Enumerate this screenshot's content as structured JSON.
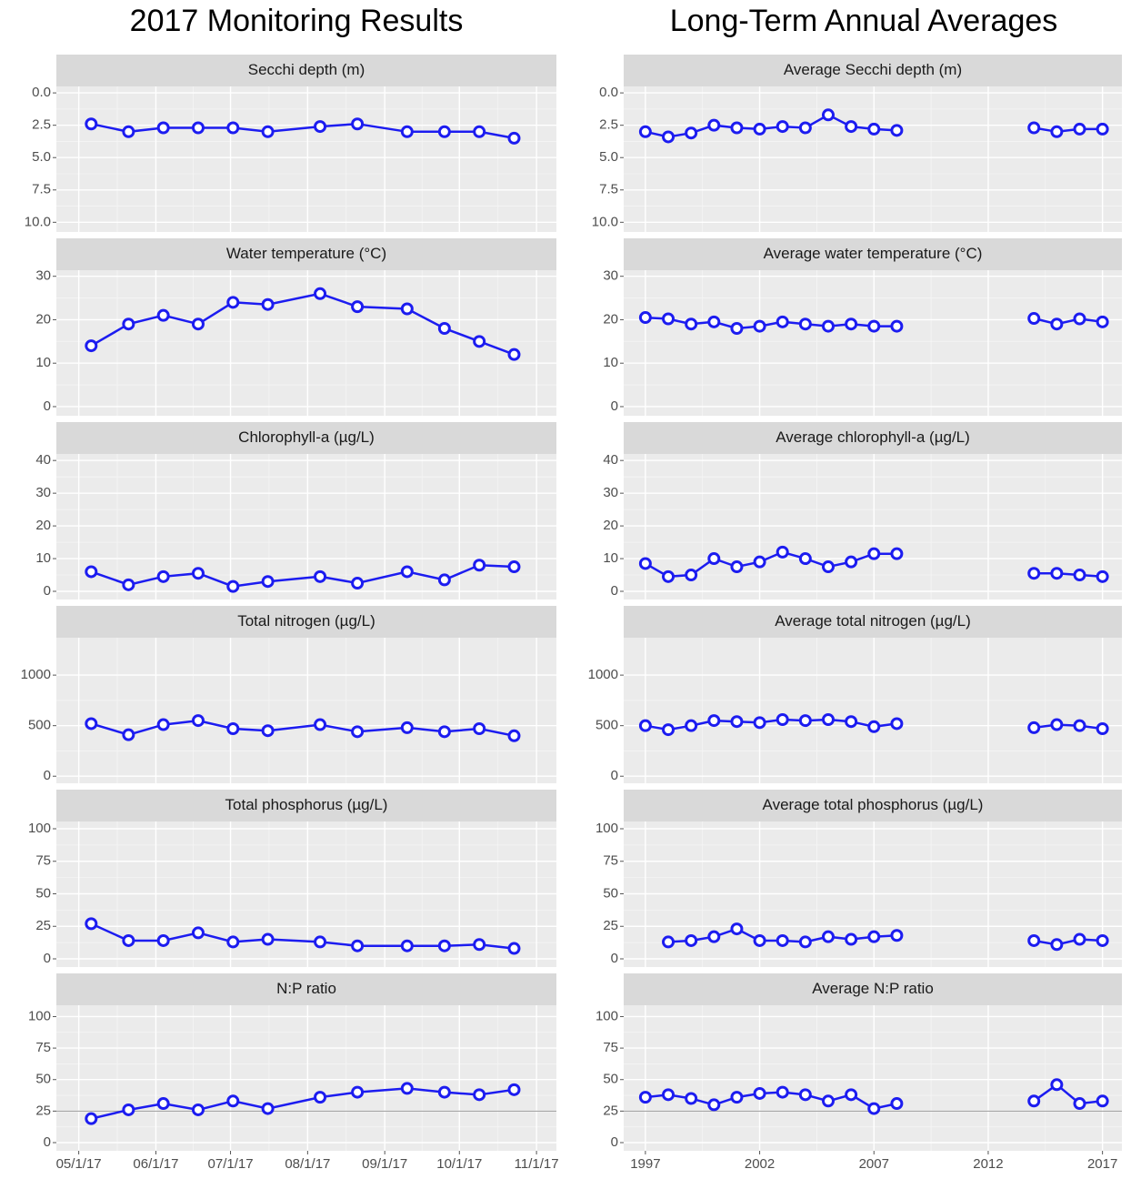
{
  "chart_data": [
    {
      "type": "line",
      "title": "2017 Monitoring Results",
      "color": "#1c1cf0",
      "grid": true,
      "xlim": [
        "2017-04-22",
        "2017-11-09"
      ],
      "xticks": [
        {
          "value": "2017-05-01",
          "label": "05/1/17"
        },
        {
          "value": "2017-06-01",
          "label": "06/1/17"
        },
        {
          "value": "2017-07-01",
          "label": "07/1/17"
        },
        {
          "value": "2017-08-01",
          "label": "08/1/17"
        },
        {
          "value": "2017-09-01",
          "label": "09/1/17"
        },
        {
          "value": "2017-10-01",
          "label": "10/1/17"
        },
        {
          "value": "2017-11-01",
          "label": "11/1/17"
        }
      ],
      "x": [
        "2017-05-06",
        "2017-05-21",
        "2017-06-04",
        "2017-06-18",
        "2017-07-02",
        "2017-07-16",
        "2017-08-06",
        "2017-08-21",
        "2017-09-10",
        "2017-09-25",
        "2017-10-09",
        "2017-10-23"
      ],
      "facets": [
        {
          "title": "Secchi depth (m)",
          "ylim": [
            10.75,
            -0.5
          ],
          "yticks": [
            {
              "value": 0,
              "label": "0.0"
            },
            2.5,
            {
              "value": 5,
              "label": "5.0"
            },
            7.5,
            {
              "value": 10,
              "label": "10.0"
            }
          ],
          "values": [
            2.4,
            3.0,
            2.7,
            2.7,
            2.7,
            3.0,
            2.6,
            2.4,
            3.0,
            3.0,
            3.0,
            3.5
          ]
        },
        {
          "title": "Water temperature (°C)",
          "ylim": [
            -2.1,
            31.4
          ],
          "yticks": [
            0,
            10,
            20,
            30
          ],
          "values": [
            14,
            19,
            21,
            19,
            24,
            23.5,
            26,
            23,
            22.5,
            18,
            15,
            12
          ]
        },
        {
          "title": "Chlorophyll-a (µg/L)",
          "ylim": [
            -2.5,
            42
          ],
          "yticks": [
            0,
            10,
            20,
            30,
            40
          ],
          "values": [
            6,
            2,
            4.5,
            5.5,
            1.5,
            3,
            4.5,
            2.5,
            6,
            3.5,
            8,
            7.5
          ]
        },
        {
          "title": "Total nitrogen (µg/L)",
          "ylim": [
            -70,
            1370
          ],
          "yticks": [
            0,
            500,
            1000
          ],
          "values": [
            520,
            410,
            510,
            550,
            470,
            450,
            510,
            440,
            480,
            440,
            470,
            400
          ]
        },
        {
          "title": "Total phosphorus (µg/L)",
          "ylim": [
            -6.3,
            105.6
          ],
          "yticks": [
            0,
            25,
            50,
            75,
            100
          ],
          "values": [
            27,
            14,
            14,
            20,
            13,
            15,
            13,
            10,
            10,
            10,
            11,
            8
          ]
        },
        {
          "title": "N:P ratio",
          "ylim": [
            -6.5,
            109
          ],
          "yticks": [
            0,
            25,
            50,
            75,
            100
          ],
          "hline": 25,
          "values": [
            19,
            26,
            31,
            26,
            33,
            27,
            36,
            40,
            43,
            40,
            38,
            42
          ]
        }
      ]
    },
    {
      "type": "line",
      "title": "Long-Term Annual Averages",
      "color": "#1c1cf0",
      "grid": true,
      "xlim": [
        1996.05,
        2017.85
      ],
      "xticks": [
        1997,
        2002,
        2007,
        2012,
        2017
      ],
      "x": [
        1997,
        1998,
        1999,
        2000,
        2001,
        2002,
        2003,
        2004,
        2005,
        2006,
        2007,
        2008,
        2009,
        2010,
        2011,
        2012,
        2013,
        2014,
        2015,
        2016,
        2017
      ],
      "facets": [
        {
          "title": "Average Secchi depth (m)",
          "ylim": [
            10.75,
            -0.5
          ],
          "yticks": [
            {
              "value": 0,
              "label": "0.0"
            },
            2.5,
            {
              "value": 5,
              "label": "5.0"
            },
            7.5,
            {
              "value": 10,
              "label": "10.0"
            }
          ],
          "values": [
            3.0,
            3.4,
            3.1,
            2.5,
            2.7,
            2.8,
            2.6,
            2.7,
            1.7,
            2.6,
            2.8,
            2.9,
            null,
            null,
            null,
            null,
            null,
            2.7,
            3.0,
            2.8,
            2.8
          ]
        },
        {
          "title": "Average water temperature (°C)",
          "ylim": [
            -2.1,
            31.4
          ],
          "yticks": [
            0,
            10,
            20,
            30
          ],
          "values": [
            20.5,
            20.2,
            19,
            19.5,
            18,
            18.5,
            19.5,
            19,
            18.5,
            19,
            18.5,
            18.5,
            null,
            null,
            null,
            null,
            null,
            20.3,
            19,
            20.2,
            19.5
          ]
        },
        {
          "title": "Average chlorophyll-a (µg/L)",
          "ylim": [
            -2.5,
            42
          ],
          "yticks": [
            0,
            10,
            20,
            30,
            40
          ],
          "values": [
            8.5,
            4.5,
            5,
            10,
            7.5,
            9,
            12,
            10,
            7.5,
            9,
            11.5,
            11.5,
            null,
            null,
            null,
            null,
            null,
            5.5,
            5.5,
            5,
            4.5
          ]
        },
        {
          "title": "Average total nitrogen (µg/L)",
          "ylim": [
            -70,
            1370
          ],
          "yticks": [
            0,
            500,
            1000
          ],
          "values": [
            500,
            460,
            500,
            550,
            540,
            530,
            560,
            550,
            560,
            540,
            490,
            520,
            null,
            null,
            null,
            null,
            null,
            480,
            510,
            500,
            470
          ]
        },
        {
          "title": "Average total phosphorus (µg/L)",
          "ylim": [
            -6.3,
            105.6
          ],
          "yticks": [
            0,
            25,
            50,
            75,
            100
          ],
          "values": [
            null,
            13,
            14,
            17,
            23,
            14,
            14,
            13,
            17,
            15,
            17,
            18,
            null,
            null,
            null,
            null,
            null,
            14,
            11,
            15,
            14
          ]
        },
        {
          "title": "Average N:P ratio",
          "ylim": [
            -6.5,
            109
          ],
          "yticks": [
            0,
            25,
            50,
            75,
            100
          ],
          "hline": 25,
          "values": [
            36,
            38,
            35,
            30,
            36,
            39,
            40,
            38,
            33,
            38,
            27,
            31,
            null,
            null,
            null,
            null,
            null,
            33,
            46,
            31,
            33
          ]
        }
      ]
    }
  ]
}
